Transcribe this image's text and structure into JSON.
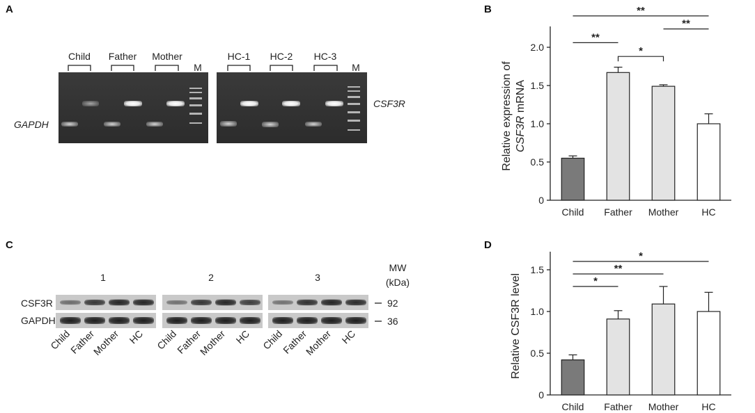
{
  "panels": {
    "a": "A",
    "b": "B",
    "c": "C",
    "d": "D"
  },
  "gel": {
    "left_groups": [
      "Child",
      "Father",
      "Mother"
    ],
    "right_groups": [
      "HC-1",
      "HC-2",
      "HC-3"
    ],
    "marker": "M",
    "left_gene": "GAPDH",
    "right_gene": "CSF3R"
  },
  "western": {
    "replicates": [
      "1",
      "2",
      "3"
    ],
    "mw_title_line1": "MW",
    "mw_title_line2": "(kDa)",
    "rows": [
      {
        "label": "CSF3R",
        "mw": "92"
      },
      {
        "label": "GAPDH",
        "mw": "36"
      }
    ],
    "lanes": [
      "Child",
      "Father",
      "Mother",
      "HC"
    ],
    "colors": {
      "background": "#c9c9c9",
      "band": "#2b2b2b"
    }
  },
  "chart_data": [
    {
      "panel": "B",
      "type": "bar",
      "categories": [
        "Child",
        "Father",
        "Mother",
        "HC"
      ],
      "values": [
        0.55,
        1.67,
        1.49,
        1.0
      ],
      "errors": [
        0.03,
        0.07,
        0.02,
        0.13
      ],
      "ylabel_line1": "Relative expression of",
      "ylabel_line2_italic": "CSF3R",
      "ylabel_line2_rest": " mRNA",
      "ylim": [
        0,
        2.2
      ],
      "yticks": [
        0,
        0.5,
        1.0,
        1.5,
        2.0
      ],
      "ytick_labels": [
        "0",
        "0.5",
        "1.0",
        "1.5",
        "2.0"
      ],
      "colors": [
        "#7a7a7a",
        "#e3e3e3",
        "#e3e3e3",
        "#ffffff"
      ],
      "significance": [
        {
          "from": 0,
          "to": 3,
          "y": 2.41,
          "label": "**"
        },
        {
          "from": 2,
          "to": 3,
          "y": 2.24,
          "label": "**"
        },
        {
          "from": 0,
          "to": 1,
          "y": 2.06,
          "label": "**"
        },
        {
          "from": 1,
          "to": 2,
          "y": 1.88,
          "label": "*",
          "drop": true
        }
      ]
    },
    {
      "panel": "D",
      "type": "bar",
      "categories": [
        "Child",
        "Father",
        "Mother",
        "HC"
      ],
      "values": [
        0.42,
        0.91,
        1.09,
        1.0
      ],
      "errors": [
        0.06,
        0.1,
        0.21,
        0.23
      ],
      "ylabel_line1": "Relative CSF3R level",
      "ylabel_line2_italic": "",
      "ylabel_line2_rest": "",
      "ylim": [
        0,
        1.65
      ],
      "yticks": [
        0,
        0.5,
        1.0,
        1.5
      ],
      "ytick_labels": [
        "0",
        "0.5",
        "1.0",
        "1.5"
      ],
      "colors": [
        "#7a7a7a",
        "#e3e3e3",
        "#e3e3e3",
        "#ffffff"
      ],
      "significance": [
        {
          "from": 0,
          "to": 3,
          "y": 1.6,
          "label": "*"
        },
        {
          "from": 0,
          "to": 2,
          "y": 1.45,
          "label": "**"
        },
        {
          "from": 0,
          "to": 1,
          "y": 1.3,
          "label": "*"
        }
      ]
    }
  ]
}
